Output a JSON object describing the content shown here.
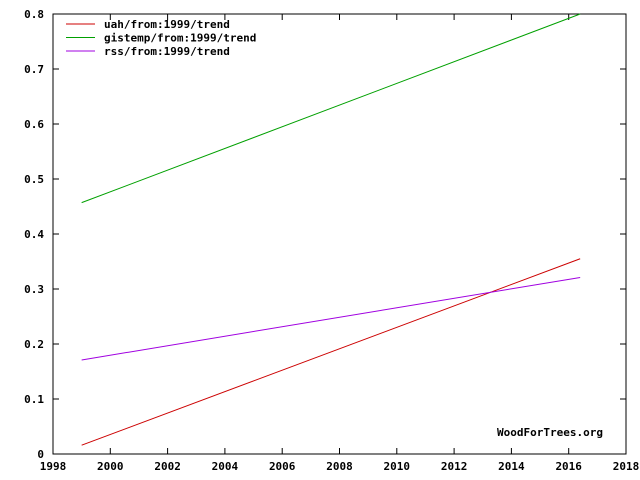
{
  "chart_data": {
    "type": "line",
    "title": "",
    "xlabel": "",
    "ylabel": "",
    "xlim": [
      1998,
      2018
    ],
    "ylim": [
      0,
      0.8
    ],
    "x_ticks": [
      1998,
      2000,
      2002,
      2004,
      2006,
      2008,
      2010,
      2012,
      2014,
      2016,
      2018
    ],
    "y_ticks": [
      0,
      0.1,
      0.2,
      0.3,
      0.4,
      0.5,
      0.6,
      0.7,
      0.8
    ],
    "x_tick_labels": [
      "1998",
      "2000",
      "2002",
      "2004",
      "2006",
      "2008",
      "2010",
      "2012",
      "2014",
      "2016",
      "2018"
    ],
    "y_tick_labels": [
      "0",
      "0.1",
      "0.2",
      "0.3",
      "0.4",
      "0.5",
      "0.6",
      "0.7",
      "0.8"
    ],
    "grid": false,
    "legend_position": "top-left",
    "watermark": "WoodForTrees.org",
    "series": [
      {
        "name": "uah/from:1999/trend",
        "color": "#cc0000",
        "x": [
          1999.0,
          2016.4
        ],
        "y": [
          0.016,
          0.355
        ]
      },
      {
        "name": "gistemp/from:1999/trend",
        "color": "#00a000",
        "x": [
          1999.0,
          2016.4
        ],
        "y": [
          0.457,
          0.8
        ]
      },
      {
        "name": "rss/from:1999/trend",
        "color": "#a000e0",
        "x": [
          1999.0,
          2016.4
        ],
        "y": [
          0.171,
          0.321
        ]
      }
    ]
  }
}
